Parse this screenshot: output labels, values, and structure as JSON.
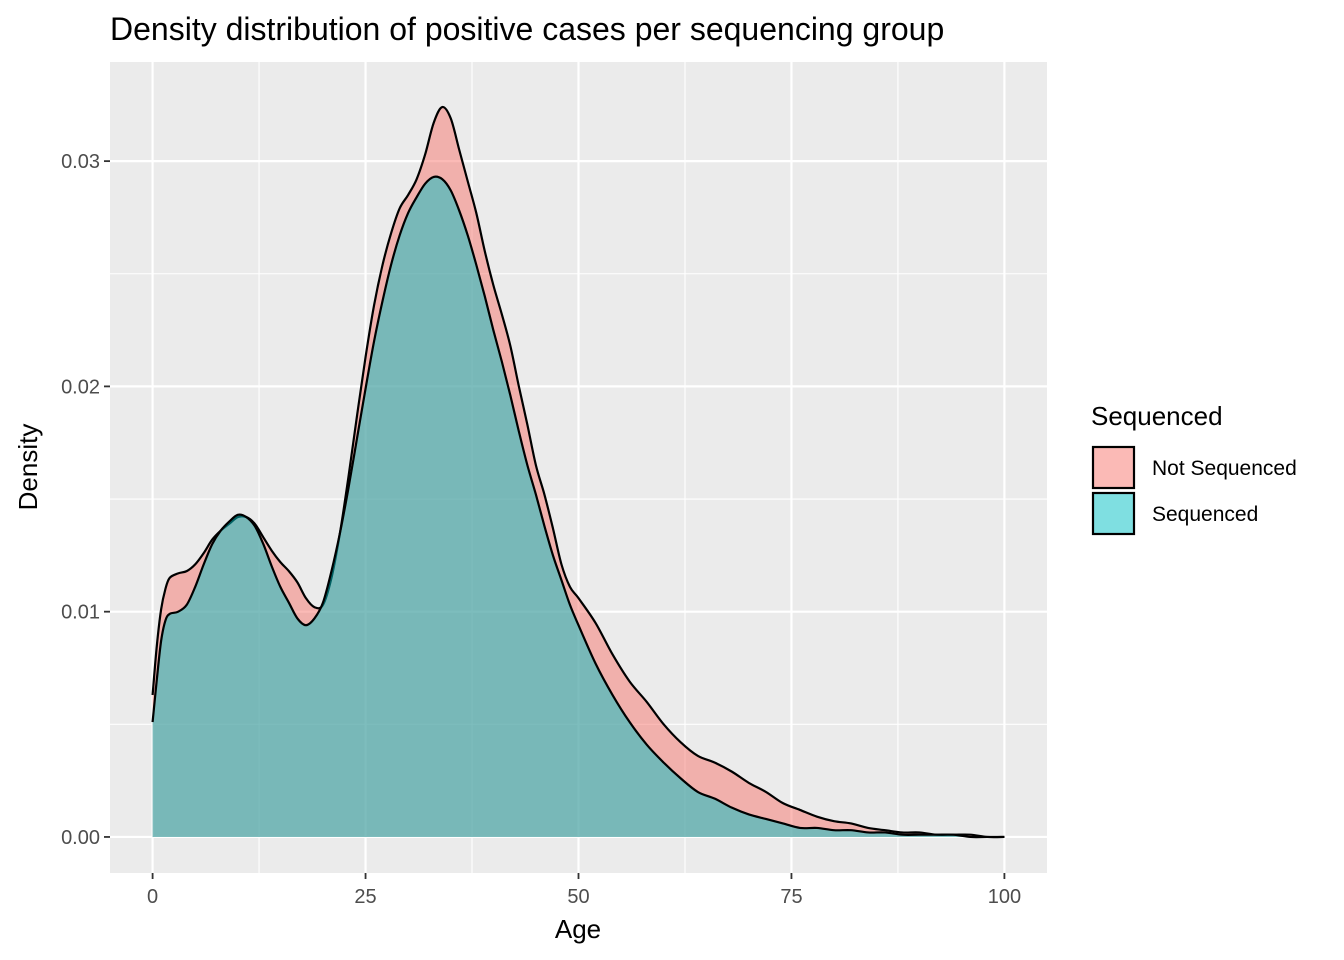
{
  "chart_data": {
    "type": "area",
    "title": "Density distribution of positive cases per sequencing group",
    "xlabel": "Age",
    "ylabel": "Density",
    "xlim": [
      -5,
      105
    ],
    "ylim": [
      -0.0016,
      0.0344
    ],
    "x_ticks": [
      0,
      25,
      50,
      75,
      100
    ],
    "x_tick_labels": [
      "0",
      "25",
      "50",
      "75",
      "100"
    ],
    "y_ticks": [
      0.0,
      0.01,
      0.02,
      0.03
    ],
    "y_tick_labels": [
      "0.00",
      "0.01",
      "0.02",
      "0.03"
    ],
    "grid": true,
    "legend": {
      "title": "Sequenced",
      "position": "right"
    },
    "series": [
      {
        "name": "Not Sequenced",
        "color": "#F8766D",
        "x": [
          0,
          0.5,
          1,
          1.5,
          2,
          3,
          4,
          5,
          6,
          7,
          8,
          9,
          10,
          11,
          12,
          13,
          14,
          15,
          16,
          17,
          18,
          19,
          20,
          21,
          22,
          23,
          24,
          25,
          26,
          27,
          28,
          29,
          30,
          31,
          32,
          33,
          34,
          35,
          36,
          37,
          38,
          39,
          40,
          41,
          42,
          43,
          44,
          45,
          46,
          47,
          48,
          49,
          50,
          52,
          54,
          56,
          58,
          60,
          62,
          64,
          66,
          68,
          70,
          72,
          74,
          76,
          78,
          80,
          82,
          84,
          86,
          88,
          90,
          92,
          94,
          96,
          98,
          100
        ],
        "y": [
          0.0063,
          0.0085,
          0.0101,
          0.011,
          0.0115,
          0.0117,
          0.0118,
          0.0121,
          0.0126,
          0.0132,
          0.0136,
          0.0139,
          0.0142,
          0.0142,
          0.0139,
          0.0133,
          0.0127,
          0.0122,
          0.0118,
          0.0113,
          0.0106,
          0.0102,
          0.0103,
          0.0115,
          0.0135,
          0.016,
          0.0187,
          0.0213,
          0.0236,
          0.0254,
          0.0268,
          0.0279,
          0.0285,
          0.0292,
          0.0303,
          0.0317,
          0.0324,
          0.0319,
          0.0305,
          0.0291,
          0.0277,
          0.026,
          0.0245,
          0.0232,
          0.0218,
          0.02,
          0.0183,
          0.0165,
          0.0152,
          0.0137,
          0.0121,
          0.0111,
          0.0106,
          0.0095,
          0.0081,
          0.0069,
          0.006,
          0.005,
          0.0042,
          0.0036,
          0.0033,
          0.0029,
          0.0024,
          0.002,
          0.0015,
          0.0012,
          0.0009,
          0.0007,
          0.0006,
          0.0004,
          0.0003,
          0.0002,
          0.0002,
          0.0001,
          0.0001,
          0.0001,
          0.0,
          0.0
        ]
      },
      {
        "name": "Sequenced",
        "color": "#00BFC4",
        "x": [
          0,
          0.5,
          1,
          1.5,
          2,
          3,
          4,
          5,
          6,
          7,
          8,
          9,
          10,
          11,
          12,
          13,
          14,
          15,
          16,
          17,
          18,
          19,
          20,
          21,
          22,
          23,
          24,
          25,
          26,
          27,
          28,
          29,
          30,
          31,
          32,
          33,
          34,
          35,
          36,
          37,
          38,
          39,
          40,
          41,
          42,
          43,
          44,
          45,
          46,
          47,
          48,
          49,
          50,
          52,
          54,
          56,
          58,
          60,
          62,
          64,
          66,
          68,
          70,
          72,
          74,
          76,
          78,
          80,
          82,
          84,
          86,
          88,
          90,
          92,
          94,
          96,
          98,
          100
        ],
        "y": [
          0.0051,
          0.007,
          0.0087,
          0.0096,
          0.0099,
          0.01,
          0.0103,
          0.0111,
          0.0121,
          0.013,
          0.0136,
          0.014,
          0.0143,
          0.0142,
          0.0138,
          0.013,
          0.012,
          0.0111,
          0.0104,
          0.0097,
          0.0094,
          0.0097,
          0.0104,
          0.0118,
          0.0135,
          0.0155,
          0.0177,
          0.0199,
          0.022,
          0.0238,
          0.0254,
          0.0267,
          0.0277,
          0.0284,
          0.029,
          0.0293,
          0.0292,
          0.0287,
          0.0278,
          0.0267,
          0.0254,
          0.024,
          0.0225,
          0.0211,
          0.0196,
          0.018,
          0.0165,
          0.0152,
          0.0138,
          0.0125,
          0.0114,
          0.0103,
          0.0094,
          0.0077,
          0.0063,
          0.0051,
          0.0041,
          0.0033,
          0.0026,
          0.002,
          0.0017,
          0.0013,
          0.001,
          0.0008,
          0.0006,
          0.0004,
          0.0004,
          0.0003,
          0.0003,
          0.0002,
          0.0002,
          0.0001,
          0.0001,
          0.0001,
          0.0001,
          0.0,
          0.0,
          0.0
        ]
      }
    ]
  }
}
